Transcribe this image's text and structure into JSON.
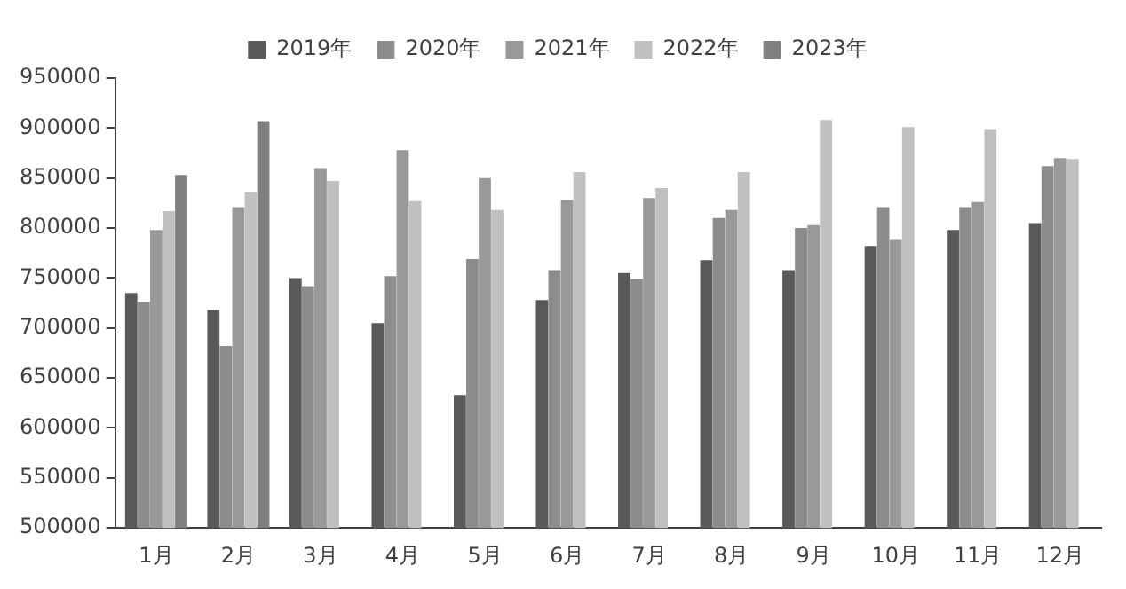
{
  "chart_data": {
    "type": "bar",
    "categories": [
      "1月",
      "2月",
      "3月",
      "4月",
      "5月",
      "6月",
      "7月",
      "8月",
      "9月",
      "10月",
      "11月",
      "12月"
    ],
    "series": [
      {
        "name": "2019年",
        "color": "#595959",
        "values": [
          735000,
          718000,
          750000,
          705000,
          633000,
          728000,
          755000,
          768000,
          758000,
          782000,
          798000,
          805000
        ]
      },
      {
        "name": "2020年",
        "color": "#8c8c8c",
        "values": [
          726000,
          682000,
          742000,
          752000,
          769000,
          758000,
          749000,
          810000,
          800000,
          821000,
          821000,
          862000
        ]
      },
      {
        "name": "2021年",
        "color": "#999999",
        "values": [
          798000,
          821000,
          860000,
          878000,
          850000,
          828000,
          830000,
          818000,
          803000,
          789000,
          826000,
          870000
        ]
      },
      {
        "name": "2022年",
        "color": "#c0c0c0",
        "values": [
          817000,
          836000,
          847000,
          827000,
          818000,
          856000,
          840000,
          856000,
          908000,
          901000,
          899000,
          869000
        ]
      },
      {
        "name": "2023年",
        "color": "#7f7f7f",
        "values": [
          853000,
          907000,
          null,
          null,
          null,
          null,
          null,
          null,
          null,
          null,
          null,
          null
        ]
      }
    ],
    "ylim": [
      500000,
      950000
    ],
    "yticks": [
      500000,
      550000,
      600000,
      650000,
      700000,
      750000,
      800000,
      850000,
      900000,
      950000
    ],
    "grid": false,
    "legend": "top"
  }
}
